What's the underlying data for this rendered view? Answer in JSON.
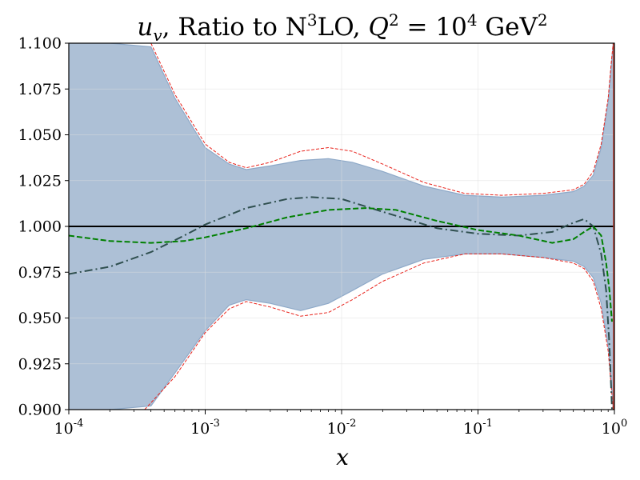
{
  "chart_data": {
    "type": "line",
    "title": "u_v, Ratio to N³LO, Q² = 10⁴ GeV²",
    "title_parts": {
      "pdf": "u",
      "pdf_sub": "v",
      "text": ", Ratio to N",
      "order_sup": "3",
      "order_tail": "LO, ",
      "q": "Q",
      "q_sup": "2",
      "eq": " = 10",
      "val_sup": "4",
      "unit": " GeV",
      "unit_sup": "2"
    },
    "xlabel": "x",
    "ylabel": "",
    "xscale": "log",
    "xlim": [
      0.0001,
      1
    ],
    "ylim": [
      0.9,
      1.1
    ],
    "x_ticks": [
      {
        "value": 0.0001,
        "base": "10",
        "exp": "-4"
      },
      {
        "value": 0.001,
        "base": "10",
        "exp": "-3"
      },
      {
        "value": 0.01,
        "base": "10",
        "exp": "-2"
      },
      {
        "value": 0.1,
        "base": "10",
        "exp": "-1"
      },
      {
        "value": 1,
        "base": "10",
        "exp": "0"
      }
    ],
    "y_ticks": [
      {
        "value": 0.9,
        "label": "0.900"
      },
      {
        "value": 0.925,
        "label": "0.925"
      },
      {
        "value": 0.95,
        "label": "0.950"
      },
      {
        "value": 0.975,
        "label": "0.975"
      },
      {
        "value": 1.0,
        "label": "1.000"
      },
      {
        "value": 1.025,
        "label": "1.025"
      },
      {
        "value": 1.05,
        "label": "1.050"
      },
      {
        "value": 1.075,
        "label": "1.075"
      },
      {
        "value": 1.1,
        "label": "1.100"
      }
    ],
    "grid": true,
    "colors": {
      "band": "#adc0d6",
      "band_edge": "#8ea9c8",
      "inner_band": "#c9cce6",
      "outer_edge": "#e8231c",
      "ref": "#000000",
      "series_dashdot": "#2f4f4f",
      "series_dashed": "#008000",
      "right_edge": "#c0392b"
    },
    "series": [
      {
        "name": "Band upper (outer, red dashed)",
        "style": "dashed",
        "x": [
          0.0004,
          0.0006,
          0.001,
          0.0015,
          0.002,
          0.003,
          0.005,
          0.008,
          0.012,
          0.02,
          0.04,
          0.08,
          0.15,
          0.3,
          0.5,
          0.6,
          0.7,
          0.8,
          0.9,
          0.95,
          0.98
        ],
        "values": [
          1.1,
          1.072,
          1.045,
          1.035,
          1.032,
          1.035,
          1.041,
          1.043,
          1.041,
          1.034,
          1.024,
          1.018,
          1.017,
          1.018,
          1.02,
          1.023,
          1.03,
          1.045,
          1.07,
          1.09,
          1.1
        ]
      },
      {
        "name": "Band upper",
        "x": [
          0.0001,
          0.0002,
          0.0004,
          0.0006,
          0.001,
          0.0015,
          0.002,
          0.003,
          0.005,
          0.008,
          0.012,
          0.02,
          0.04,
          0.08,
          0.15,
          0.3,
          0.5,
          0.6,
          0.7,
          0.8,
          0.9,
          0.95,
          0.98
        ],
        "values": [
          1.1,
          1.1,
          1.098,
          1.07,
          1.043,
          1.034,
          1.031,
          1.033,
          1.036,
          1.037,
          1.035,
          1.03,
          1.022,
          1.017,
          1.016,
          1.017,
          1.019,
          1.022,
          1.028,
          1.043,
          1.068,
          1.088,
          1.1
        ]
      },
      {
        "name": "Band lower",
        "x": [
          0.0001,
          0.0002,
          0.0004,
          0.0006,
          0.001,
          0.0015,
          0.002,
          0.003,
          0.005,
          0.008,
          0.012,
          0.02,
          0.04,
          0.08,
          0.15,
          0.3,
          0.5,
          0.6,
          0.7,
          0.8,
          0.9,
          0.95,
          0.98
        ],
        "values": [
          0.9,
          0.9,
          0.902,
          0.92,
          0.943,
          0.957,
          0.96,
          0.958,
          0.954,
          0.958,
          0.965,
          0.974,
          0.982,
          0.985,
          0.985,
          0.983,
          0.981,
          0.978,
          0.972,
          0.958,
          0.935,
          0.915,
          0.9
        ]
      },
      {
        "name": "Band lower (outer, red dashed)",
        "style": "dashed",
        "x": [
          0.00036,
          0.0006,
          0.001,
          0.0015,
          0.002,
          0.003,
          0.005,
          0.008,
          0.012,
          0.02,
          0.04,
          0.08,
          0.15,
          0.3,
          0.5,
          0.6,
          0.7,
          0.8,
          0.9,
          0.95,
          0.98
        ],
        "values": [
          0.9,
          0.918,
          0.942,
          0.955,
          0.959,
          0.956,
          0.951,
          0.953,
          0.96,
          0.97,
          0.98,
          0.985,
          0.985,
          0.983,
          0.98,
          0.977,
          0.97,
          0.955,
          0.932,
          0.912,
          0.9
        ]
      },
      {
        "name": "Dash-dot (dark slate)",
        "style": "dashdot",
        "x": [
          0.0001,
          0.0002,
          0.0004,
          0.0007,
          0.001,
          0.002,
          0.004,
          0.006,
          0.01,
          0.02,
          0.05,
          0.1,
          0.2,
          0.35,
          0.5,
          0.6,
          0.7,
          0.8,
          0.87,
          0.92,
          0.96
        ],
        "values": [
          0.974,
          0.978,
          0.986,
          0.995,
          1.001,
          1.01,
          1.015,
          1.016,
          1.015,
          1.008,
          0.999,
          0.996,
          0.995,
          0.997,
          1.002,
          1.004,
          1.0,
          0.985,
          0.965,
          0.935,
          0.9
        ]
      },
      {
        "name": "Dashed (green)",
        "style": "dashed",
        "x": [
          0.0001,
          0.0002,
          0.0004,
          0.0007,
          0.001,
          0.002,
          0.004,
          0.008,
          0.015,
          0.025,
          0.05,
          0.1,
          0.2,
          0.35,
          0.5,
          0.6,
          0.7,
          0.8,
          0.87,
          0.92,
          0.96
        ],
        "values": [
          0.995,
          0.992,
          0.991,
          0.992,
          0.994,
          0.999,
          1.005,
          1.009,
          1.01,
          1.009,
          1.003,
          0.998,
          0.995,
          0.991,
          0.993,
          0.997,
          1.0,
          0.995,
          0.98,
          0.965,
          0.948
        ]
      },
      {
        "name": "Reference (N³LO)",
        "style": "solid",
        "x": [
          0.0001,
          1
        ],
        "values": [
          1.0,
          1.0
        ]
      }
    ]
  }
}
